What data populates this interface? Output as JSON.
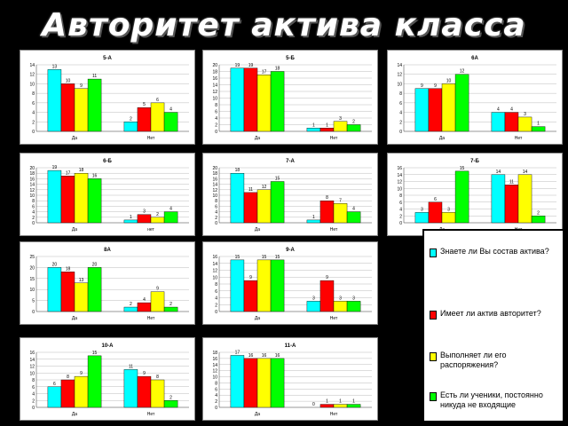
{
  "title": "Авторитет актива класса",
  "colors": [
    "#00FFFF",
    "#FF0000",
    "#FFFF00",
    "#00FF00"
  ],
  "legend": [
    "Знаете ли Вы состав актива?",
    "Имеет ли актив авторитет?",
    "Выполняет ли его распоряжения?",
    "Есть ли ученики, постоянно никуда не входящие"
  ],
  "chart_data": [
    {
      "type": "bar",
      "title": "5-А",
      "categories": [
        "Да",
        "Нет"
      ],
      "ylim": [
        0,
        14
      ],
      "yticks": [
        0,
        2,
        4,
        6,
        8,
        10,
        12,
        14
      ],
      "series": [
        {
          "values": [
            13,
            2
          ]
        },
        {
          "values": [
            10,
            5
          ]
        },
        {
          "values": [
            9,
            6
          ]
        },
        {
          "values": [
            11,
            4
          ]
        }
      ]
    },
    {
      "type": "bar",
      "title": "5-Б",
      "categories": [
        "Да",
        "Нет"
      ],
      "ylim": [
        0,
        20
      ],
      "yticks": [
        0,
        2,
        4,
        6,
        8,
        10,
        12,
        14,
        16,
        18,
        20
      ],
      "series": [
        {
          "values": [
            19,
            1
          ]
        },
        {
          "values": [
            19,
            1
          ]
        },
        {
          "values": [
            17,
            3
          ]
        },
        {
          "values": [
            18,
            2
          ]
        }
      ]
    },
    {
      "type": "bar",
      "title": "6А",
      "categories": [
        "Да",
        "Нет"
      ],
      "ylim": [
        0,
        14
      ],
      "yticks": [
        0,
        2,
        4,
        6,
        8,
        10,
        12,
        14
      ],
      "series": [
        {
          "values": [
            9,
            4
          ]
        },
        {
          "values": [
            9,
            4
          ]
        },
        {
          "values": [
            10,
            3
          ]
        },
        {
          "values": [
            12,
            1
          ]
        }
      ]
    },
    {
      "type": "bar",
      "title": "6-Б",
      "categories": [
        "Да",
        "нет"
      ],
      "ylim": [
        0,
        20
      ],
      "yticks": [
        0,
        2,
        4,
        6,
        8,
        10,
        12,
        14,
        16,
        18,
        20
      ],
      "series": [
        {
          "values": [
            19,
            1
          ]
        },
        {
          "values": [
            17,
            3
          ]
        },
        {
          "values": [
            18,
            2
          ]
        },
        {
          "values": [
            16,
            4
          ]
        }
      ]
    },
    {
      "type": "bar",
      "title": "7-А",
      "categories": [
        "Да",
        "Нет"
      ],
      "ylim": [
        0,
        20
      ],
      "yticks": [
        0,
        2,
        4,
        6,
        8,
        10,
        12,
        14,
        16,
        18,
        20
      ],
      "series": [
        {
          "values": [
            18,
            1
          ]
        },
        {
          "values": [
            11,
            8
          ]
        },
        {
          "values": [
            12,
            7
          ]
        },
        {
          "values": [
            15,
            4
          ]
        }
      ]
    },
    {
      "type": "bar",
      "title": "7-Б",
      "categories": [
        "Да",
        "Нет"
      ],
      "ylim": [
        0,
        16
      ],
      "yticks": [
        0,
        2,
        4,
        6,
        8,
        10,
        12,
        14,
        16
      ],
      "series": [
        {
          "values": [
            3,
            14
          ]
        },
        {
          "values": [
            6,
            11
          ]
        },
        {
          "values": [
            3,
            14
          ]
        },
        {
          "values": [
            15,
            2
          ]
        }
      ]
    },
    {
      "type": "bar",
      "title": "8А",
      "categories": [
        "Да",
        "Нет"
      ],
      "ylim": [
        0,
        25
      ],
      "yticks": [
        0,
        5,
        10,
        15,
        20,
        25
      ],
      "series": [
        {
          "values": [
            20,
            2
          ]
        },
        {
          "values": [
            18,
            4
          ]
        },
        {
          "values": [
            13,
            9
          ]
        },
        {
          "values": [
            20,
            2
          ]
        }
      ]
    },
    {
      "type": "bar",
      "title": "9-А",
      "categories": [
        "Да",
        "Нет"
      ],
      "ylim": [
        0,
        16
      ],
      "yticks": [
        0,
        2,
        4,
        6,
        8,
        10,
        12,
        14,
        16
      ],
      "series": [
        {
          "values": [
            15,
            3
          ]
        },
        {
          "values": [
            9,
            9
          ]
        },
        {
          "values": [
            15,
            3
          ]
        },
        {
          "values": [
            15,
            3
          ]
        }
      ]
    },
    {
      "type": "bar",
      "title": "10-А",
      "categories": [
        "Да",
        "Нет"
      ],
      "ylim": [
        0,
        16
      ],
      "yticks": [
        0,
        2,
        4,
        6,
        8,
        10,
        12,
        14,
        16
      ],
      "series": [
        {
          "values": [
            6,
            11
          ]
        },
        {
          "values": [
            8,
            9
          ]
        },
        {
          "values": [
            9,
            8
          ]
        },
        {
          "values": [
            15,
            2
          ]
        }
      ]
    },
    {
      "type": "bar",
      "title": "11-А",
      "categories": [
        "Да",
        "Нет"
      ],
      "ylim": [
        0,
        18
      ],
      "yticks": [
        0,
        2,
        4,
        6,
        8,
        10,
        12,
        14,
        16,
        18
      ],
      "series": [
        {
          "values": [
            17,
            0
          ]
        },
        {
          "values": [
            16,
            1
          ]
        },
        {
          "values": [
            16,
            1
          ]
        },
        {
          "values": [
            16,
            1
          ]
        }
      ]
    }
  ]
}
